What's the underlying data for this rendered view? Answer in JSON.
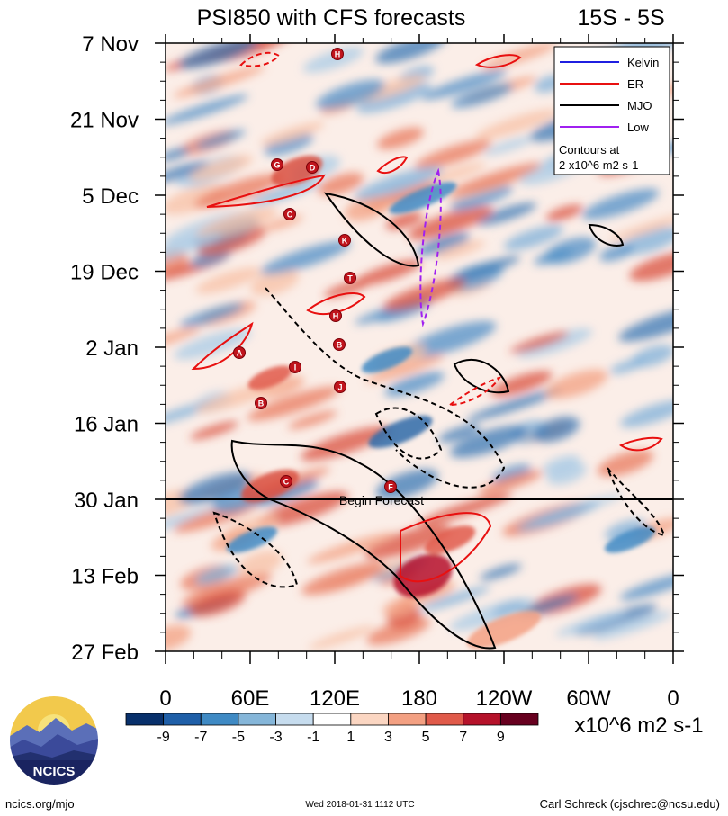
{
  "chart_data": {
    "type": "heatmap",
    "title": "PSI850 with CFS forecasts",
    "region": "15S - 5S",
    "y_labels": [
      "7 Nov",
      "21 Nov",
      "5 Dec",
      "19 Dec",
      "2 Jan",
      "16 Jan",
      "30 Jan",
      "13 Feb",
      "27 Feb"
    ],
    "x_labels": [
      "0",
      "60E",
      "120E",
      "180",
      "120W",
      "60W",
      "0"
    ],
    "x_range": [
      0,
      360
    ],
    "forecast_label": "Begin Forecast",
    "forecast_index": 6,
    "legend": {
      "entries": [
        {
          "name": "Kelvin",
          "color": "#1f1fe0"
        },
        {
          "name": "ER",
          "color": "#e81010"
        },
        {
          "name": "MJO",
          "color": "#000000"
        },
        {
          "name": "Low",
          "color": "#a020f0"
        }
      ],
      "note_line1": "Contours at",
      "note_line2": "2 x10^6 m2 s-1"
    },
    "colorbar": {
      "levels": [
        "-9",
        "-7",
        "-5",
        "-3",
        "-1",
        "1",
        "3",
        "5",
        "7",
        "9"
      ],
      "colors": [
        "#08306b",
        "#1f5fa8",
        "#3f8ac4",
        "#85b6d9",
        "#c6dcee",
        "#ffffff",
        "#fbd6c2",
        "#f3a082",
        "#e05a4a",
        "#b5122a",
        "#67001f"
      ],
      "units": "x10^6 m2 s-1"
    },
    "storm_markers": [
      "H",
      "G",
      "D",
      "C",
      "K",
      "T",
      "H",
      "B",
      "A",
      "I",
      "J",
      "B",
      "C",
      "F"
    ]
  },
  "footer": {
    "left": "ncics.org/mjo",
    "center": "Wed 2018-01-31 1112 UTC",
    "right": "Carl Schreck (cjschrec@ncsu.edu)"
  },
  "logo": {
    "text": "NCICS"
  }
}
